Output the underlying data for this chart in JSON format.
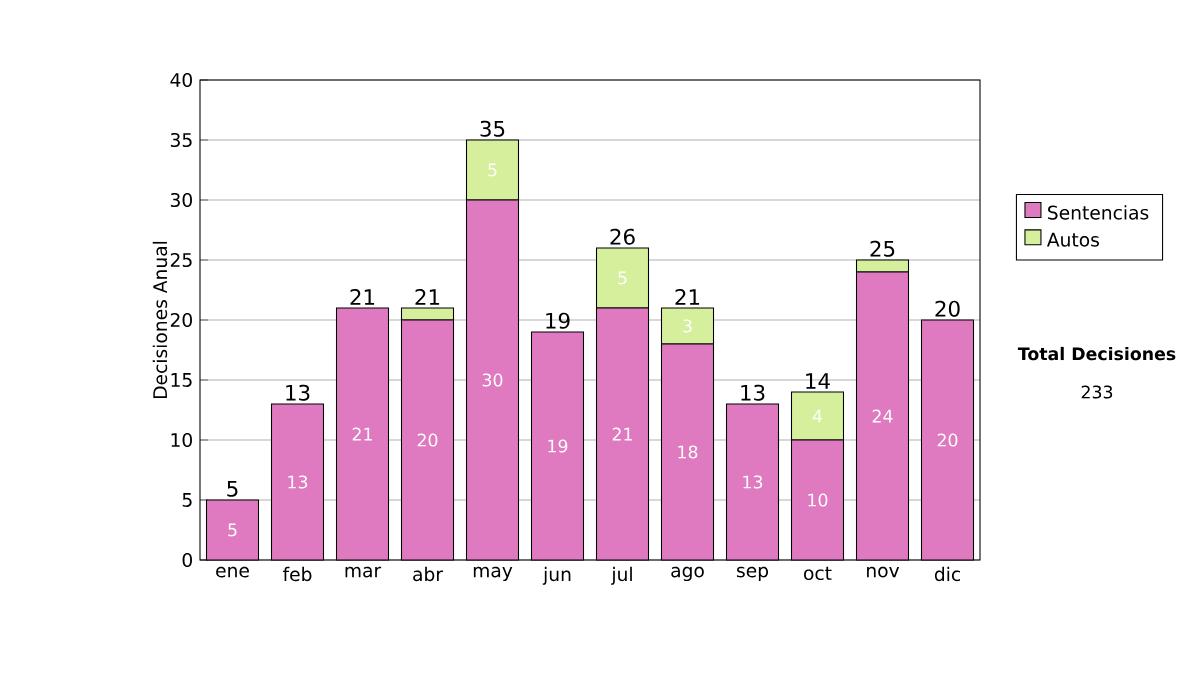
{
  "chart_data": {
    "type": "bar",
    "stacked": true,
    "ylabel": "Decisiones Anual",
    "categories": [
      "ene",
      "feb",
      "mar",
      "abr",
      "may",
      "jun",
      "jul",
      "ago",
      "sep",
      "oct",
      "nov",
      "dic"
    ],
    "series": [
      {
        "name": "Sentencias",
        "color": "#e07ac0",
        "values": [
          5,
          13,
          21,
          20,
          30,
          19,
          21,
          18,
          13,
          10,
          24,
          20
        ],
        "value_labels": [
          "5",
          "13",
          "21",
          "20",
          "30",
          "19",
          "21",
          "18",
          "13",
          "10",
          "24",
          "20"
        ]
      },
      {
        "name": "Autos",
        "color": "#d6ef9c",
        "values": [
          0,
          0,
          0,
          1,
          5,
          0,
          5,
          3,
          0,
          4,
          1,
          0
        ],
        "value_labels": [
          null,
          null,
          null,
          null,
          "5",
          null,
          "5",
          "3",
          null,
          "4",
          null,
          null
        ]
      }
    ],
    "totals": [
      "5",
      "13",
      "21",
      "21",
      "35",
      "19",
      "26",
      "21",
      "13",
      "14",
      "25",
      "20"
    ],
    "ylim": [
      0,
      40
    ],
    "yticks": [
      0,
      5,
      10,
      15,
      20,
      25,
      30,
      35,
      40
    ],
    "grid": "y",
    "legend": "right",
    "annotations": [
      "Total Decisiones",
      "233"
    ]
  }
}
